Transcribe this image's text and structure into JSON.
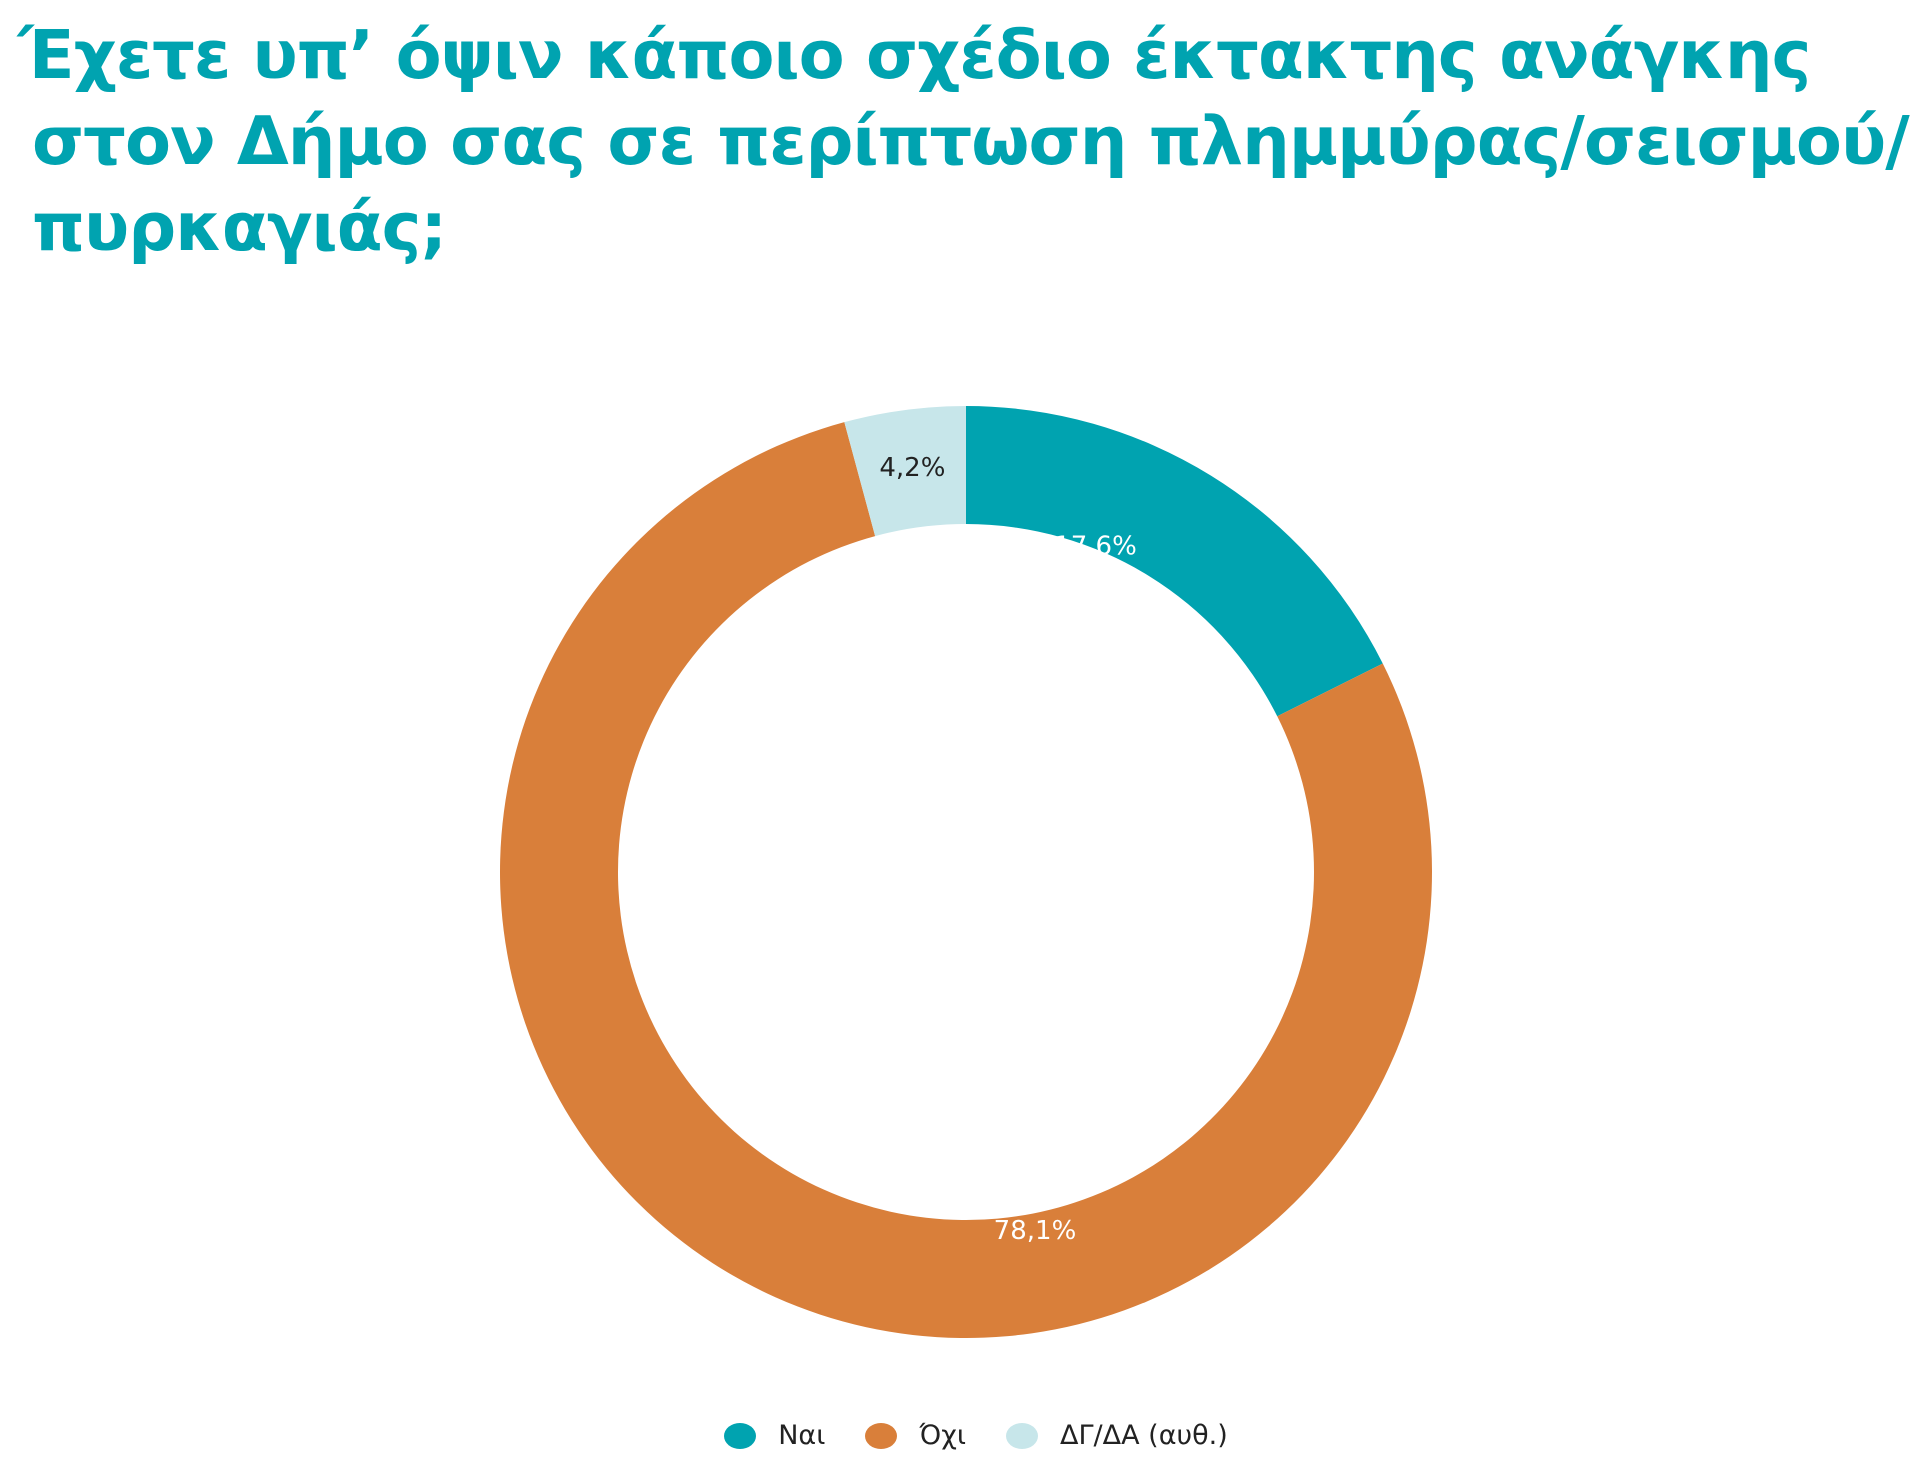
{
  "title": {
    "line1": "Έχετε υπ’ όψιν κάποιο σχέδιο έκτακτης ανάγκης",
    "line2": "στον Δήμο σας σε περίπτωση πλημμύρας/σεισμού/",
    "line3": "πυρκαγιάς;"
  },
  "colors": {
    "title": "#00a3b0",
    "nai": "#00a3b0",
    "ochi": "#d97f3a",
    "dk": "#c7e6ea",
    "label_dark": "#222222",
    "label_light": "#ffffff"
  },
  "chart_data": {
    "type": "pie",
    "variant": "donut",
    "title": "Έχετε υπ’ όψιν κάποιο σχέδιο έκτακτης ανάγκης στον Δήμο σας σε περίπτωση πλημμύρας/σεισμού/πυρκαγιάς;",
    "categories": [
      "Ναι",
      "Όχι",
      "ΔΓ/ΔΑ (αυθ.)"
    ],
    "values": [
      17.6,
      78.1,
      4.2
    ],
    "data_labels": [
      "17,6%",
      "78,1%",
      "4,2%"
    ],
    "colors": [
      "#00a3b0",
      "#d97f3a",
      "#c7e6ea"
    ],
    "start": "12 o'clock, clockwise",
    "legend_position": "bottom"
  },
  "legend": {
    "items": [
      {
        "label": "Ναι"
      },
      {
        "label": "Όχι"
      },
      {
        "label": "ΔΓ/ΔΑ (αυθ.)"
      }
    ]
  }
}
